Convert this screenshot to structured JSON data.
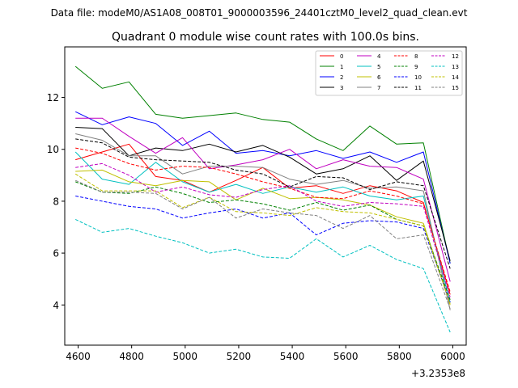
{
  "chart_data": {
    "type": "line",
    "suptitle": "Data file: modeM0/AS1A08_008T01_9000003596_24401cztM0_level2_quad_clean.evt",
    "title": "Quadrant 0 module wise count rates with 100.0s bins.",
    "xlabel": "",
    "ylabel": "",
    "x_offset_label": "+3.2353e8",
    "xlim": [
      4550,
      6050
    ],
    "ylim": [
      2.45,
      13.95
    ],
    "x_ticks": [
      4600,
      4800,
      5000,
      5200,
      5400,
      5600,
      5800,
      6000
    ],
    "y_ticks": [
      4,
      6,
      8,
      10,
      12
    ],
    "legend_position": "upper-right",
    "x": [
      4590,
      4690,
      4790,
      4890,
      4990,
      5090,
      5190,
      5290,
      5390,
      5490,
      5590,
      5690,
      5790,
      5890,
      5990
    ],
    "series": [
      {
        "name": "0",
        "color": "#ff0000",
        "dash": false,
        "values": [
          9.6,
          9.9,
          10.2,
          8.95,
          8.8,
          8.35,
          8.8,
          9.3,
          8.5,
          8.6,
          8.3,
          8.6,
          8.4,
          7.95,
          4.4
        ]
      },
      {
        "name": "1",
        "color": "#008000",
        "dash": false,
        "values": [
          13.2,
          12.35,
          12.6,
          11.35,
          11.2,
          11.3,
          11.4,
          11.15,
          11.05,
          10.4,
          9.95,
          10.9,
          10.2,
          10.25,
          5.6
        ]
      },
      {
        "name": "2",
        "color": "#0000ff",
        "dash": false,
        "values": [
          11.45,
          10.95,
          11.25,
          11.0,
          10.15,
          10.7,
          9.85,
          9.95,
          9.75,
          9.95,
          9.65,
          9.9,
          9.5,
          9.9,
          5.6
        ]
      },
      {
        "name": "3",
        "color": "#000000",
        "dash": false,
        "values": [
          10.85,
          10.8,
          9.75,
          10.05,
          9.95,
          10.2,
          9.9,
          10.15,
          9.7,
          9.05,
          9.25,
          9.75,
          8.8,
          9.55,
          5.7
        ]
      },
      {
        "name": "4",
        "color": "#c000c0",
        "dash": false,
        "values": [
          11.2,
          11.2,
          10.5,
          9.85,
          10.45,
          9.25,
          9.4,
          9.6,
          10.0,
          9.25,
          9.6,
          9.35,
          9.3,
          8.85,
          4.9
        ]
      },
      {
        "name": "5",
        "color": "#00c0c0",
        "dash": false,
        "values": [
          9.9,
          8.85,
          8.65,
          9.5,
          8.75,
          8.35,
          8.65,
          8.3,
          8.55,
          8.35,
          8.55,
          8.2,
          8.05,
          8.2,
          4.1
        ]
      },
      {
        "name": "6",
        "color": "#c0c000",
        "dash": false,
        "values": [
          9.15,
          9.2,
          8.75,
          8.6,
          8.8,
          8.75,
          8.05,
          8.5,
          8.1,
          8.15,
          8.05,
          7.85,
          7.4,
          7.15,
          4.0
        ]
      },
      {
        "name": "7",
        "color": "#808080",
        "dash": false,
        "values": [
          10.6,
          10.35,
          9.75,
          9.75,
          9.05,
          9.35,
          9.35,
          9.3,
          8.85,
          8.65,
          8.8,
          8.5,
          8.55,
          8.4,
          3.8
        ]
      },
      {
        "name": "8",
        "color": "#ff0000",
        "dash": true,
        "values": [
          10.05,
          9.85,
          9.45,
          9.2,
          9.35,
          9.3,
          9.05,
          8.75,
          8.5,
          8.15,
          8.1,
          8.4,
          8.2,
          7.9,
          4.5
        ]
      },
      {
        "name": "9",
        "color": "#008000",
        "dash": true,
        "values": [
          8.75,
          8.35,
          8.3,
          8.55,
          8.3,
          7.95,
          8.05,
          7.9,
          7.65,
          7.95,
          7.65,
          7.85,
          7.3,
          7.05,
          4.2
        ]
      },
      {
        "name": "10",
        "color": "#0000ff",
        "dash": true,
        "values": [
          8.2,
          8.0,
          7.8,
          7.7,
          7.35,
          7.55,
          7.7,
          7.35,
          7.55,
          6.7,
          7.15,
          7.25,
          7.2,
          6.95,
          4.1
        ]
      },
      {
        "name": "11",
        "color": "#000000",
        "dash": true,
        "values": [
          10.4,
          10.25,
          9.7,
          9.6,
          9.55,
          9.5,
          9.2,
          9.05,
          8.55,
          8.95,
          8.9,
          8.45,
          8.75,
          8.6,
          5.4
        ]
      },
      {
        "name": "12",
        "color": "#c000c0",
        "dash": true,
        "values": [
          9.3,
          9.45,
          9.0,
          8.35,
          8.55,
          8.25,
          8.15,
          8.45,
          8.6,
          8.0,
          7.8,
          7.95,
          7.9,
          7.8,
          4.3
        ]
      },
      {
        "name": "13",
        "color": "#00c0c0",
        "dash": true,
        "values": [
          7.3,
          6.8,
          6.95,
          6.65,
          6.4,
          6.0,
          6.15,
          5.85,
          5.8,
          6.55,
          5.85,
          6.3,
          5.75,
          5.4,
          2.95
        ]
      },
      {
        "name": "14",
        "color": "#c0c000",
        "dash": true,
        "values": [
          9.05,
          8.4,
          8.4,
          8.4,
          7.75,
          8.15,
          7.6,
          7.55,
          7.45,
          7.75,
          7.6,
          7.55,
          7.3,
          7.05,
          4.05
        ]
      },
      {
        "name": "15",
        "color": "#808080",
        "dash": true,
        "values": [
          8.8,
          8.35,
          8.35,
          8.3,
          7.7,
          8.15,
          7.35,
          7.7,
          7.55,
          7.45,
          6.95,
          7.45,
          6.55,
          6.7,
          3.85
        ]
      }
    ]
  }
}
